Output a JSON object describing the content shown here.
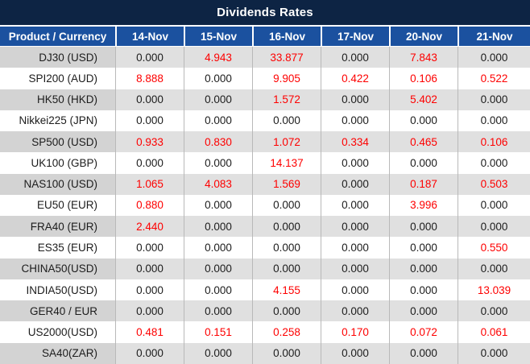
{
  "title": "Dividends Rates",
  "colors": {
    "title_bar": "#0d2444",
    "header_bg": "#1b519f",
    "header_text": "#ffffff",
    "row_alt_bg": "#e0e0e0",
    "product_alt_bg": "#d3d3d3",
    "separator": "#b9b9b9",
    "value_nonzero": "#fe0000",
    "value_zero": "#1c1c1c"
  },
  "table": {
    "product_header": "Product / Currency",
    "date_columns": [
      "14-Nov",
      "15-Nov",
      "16-Nov",
      "17-Nov",
      "20-Nov",
      "21-Nov"
    ],
    "rows": [
      {
        "product": "DJ30 (USD)",
        "values": [
          "0.000",
          "4.943",
          "33.877",
          "0.000",
          "7.843",
          "0.000"
        ]
      },
      {
        "product": "SPI200 (AUD)",
        "values": [
          "8.888",
          "0.000",
          "9.905",
          "0.422",
          "0.106",
          "0.522"
        ]
      },
      {
        "product": "HK50 (HKD)",
        "values": [
          "0.000",
          "0.000",
          "1.572",
          "0.000",
          "5.402",
          "0.000"
        ]
      },
      {
        "product": "Nikkei225 (JPN)",
        "values": [
          "0.000",
          "0.000",
          "0.000",
          "0.000",
          "0.000",
          "0.000"
        ]
      },
      {
        "product": "SP500 (USD)",
        "values": [
          "0.933",
          "0.830",
          "1.072",
          "0.334",
          "0.465",
          "0.106"
        ]
      },
      {
        "product": "UK100 (GBP)",
        "values": [
          "0.000",
          "0.000",
          "14.137",
          "0.000",
          "0.000",
          "0.000"
        ]
      },
      {
        "product": "NAS100 (USD)",
        "values": [
          "1.065",
          "4.083",
          "1.569",
          "0.000",
          "0.187",
          "0.503"
        ]
      },
      {
        "product": "EU50 (EUR)",
        "values": [
          "0.880",
          "0.000",
          "0.000",
          "0.000",
          "3.996",
          "0.000"
        ]
      },
      {
        "product": "FRA40 (EUR)",
        "values": [
          "2.440",
          "0.000",
          "0.000",
          "0.000",
          "0.000",
          "0.000"
        ]
      },
      {
        "product": "ES35 (EUR)",
        "values": [
          "0.000",
          "0.000",
          "0.000",
          "0.000",
          "0.000",
          "0.550"
        ]
      },
      {
        "product": "CHINA50(USD)",
        "values": [
          "0.000",
          "0.000",
          "0.000",
          "0.000",
          "0.000",
          "0.000"
        ]
      },
      {
        "product": "INDIA50(USD)",
        "values": [
          "0.000",
          "0.000",
          "4.155",
          "0.000",
          "0.000",
          "13.039"
        ]
      },
      {
        "product": "GER40 / EUR",
        "values": [
          "0.000",
          "0.000",
          "0.000",
          "0.000",
          "0.000",
          "0.000"
        ]
      },
      {
        "product": "US2000(USD)",
        "values": [
          "0.481",
          "0.151",
          "0.258",
          "0.170",
          "0.072",
          "0.061"
        ]
      },
      {
        "product": "SA40(ZAR)",
        "values": [
          "0.000",
          "0.000",
          "0.000",
          "0.000",
          "0.000",
          "0.000"
        ]
      }
    ]
  }
}
